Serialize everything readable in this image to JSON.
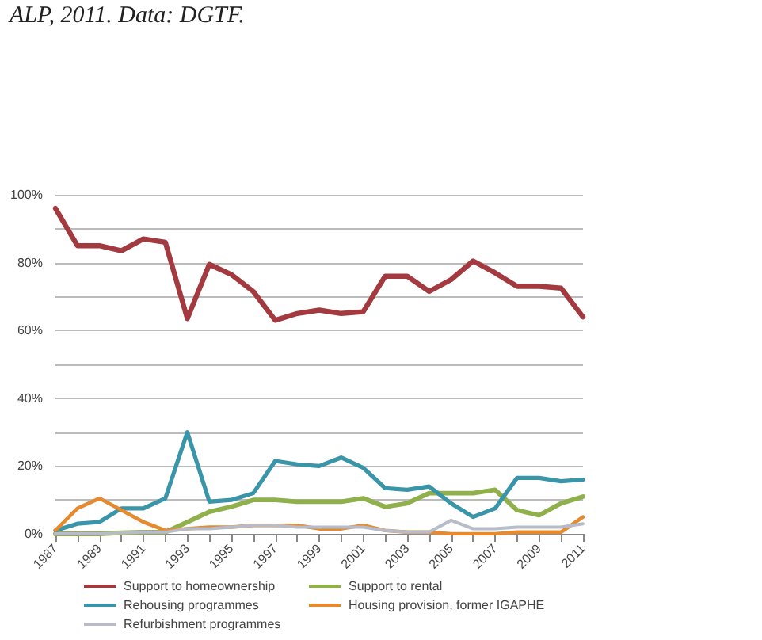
{
  "chart_data": {
    "type": "line",
    "annotations": [
      "ALP, 2011. Data: DGTF."
    ],
    "categories": [
      "1987",
      null,
      "1989",
      null,
      "1991",
      null,
      "1993",
      null,
      "1995",
      null,
      "1997",
      null,
      "1999",
      null,
      "2001",
      null,
      "2003",
      null,
      "2005",
      null,
      "2007",
      null,
      "2009",
      null,
      "2011"
    ],
    "series": [
      {
        "name": "Support to homeownership",
        "color": "#a33a3f",
        "values": [
          96,
          85,
          85,
          83.5,
          87,
          86,
          63.5,
          79.5,
          76.5,
          71.5,
          63,
          65,
          66,
          65,
          65.5,
          76,
          76,
          71.5,
          75,
          80.5,
          77,
          73,
          73,
          72.5,
          64
        ]
      },
      {
        "name": "Support to rental",
        "color": "#8fb04a",
        "values": [
          0,
          0,
          0,
          0.3,
          0.5,
          0.5,
          3.5,
          6.5,
          8,
          10,
          10,
          9.5,
          9.5,
          9.5,
          10.5,
          8,
          9,
          12,
          12,
          12,
          13,
          7,
          5.5,
          9,
          11
        ]
      },
      {
        "name": "Rehousing programmes",
        "color": "#3a95a8",
        "values": [
          1,
          3,
          3.5,
          7.5,
          7.5,
          10.5,
          30,
          9.5,
          10,
          12,
          21.5,
          20.5,
          20,
          22.5,
          19.5,
          13.5,
          13,
          14,
          9,
          5,
          7.5,
          16.5,
          16.5,
          15.5,
          16
        ]
      },
      {
        "name": "Housing provision, former IGAPHE",
        "color": "#e58a2e",
        "values": [
          1,
          7.5,
          10.5,
          7,
          3.5,
          1,
          1.5,
          2,
          2,
          2.5,
          2.5,
          2.5,
          1.5,
          1.5,
          2.5,
          1,
          0.5,
          0.5,
          0,
          0,
          0,
          0.5,
          0.5,
          0.5,
          5
        ]
      },
      {
        "name": "Refurbishment programmes",
        "color": "#b8bcc8",
        "values": [
          0,
          0,
          0,
          0.3,
          0.5,
          0.5,
          1.5,
          1.5,
          2,
          2.5,
          2.5,
          2,
          2,
          2,
          2,
          1,
          0.5,
          0.5,
          4,
          1.5,
          1.5,
          2,
          2,
          2,
          3
        ]
      }
    ],
    "ylim": [
      0,
      100
    ],
    "yticks": [
      {
        "value": 0,
        "label": "0%"
      },
      {
        "value": 10,
        "label": null
      },
      {
        "value": 20,
        "label": "20%"
      },
      {
        "value": 30,
        "label": null
      },
      {
        "value": 40,
        "label": "40%"
      },
      {
        "value": 50,
        "label": null
      },
      {
        "value": 60,
        "label": "60%"
      },
      {
        "value": 70,
        "label": null
      },
      {
        "value": 80,
        "label": "80%"
      },
      {
        "value": 90,
        "label": null
      },
      {
        "value": 100,
        "label": "100%"
      }
    ],
    "grid": "y",
    "legend": "bottom",
    "marker": "none",
    "line_style": "solid"
  }
}
